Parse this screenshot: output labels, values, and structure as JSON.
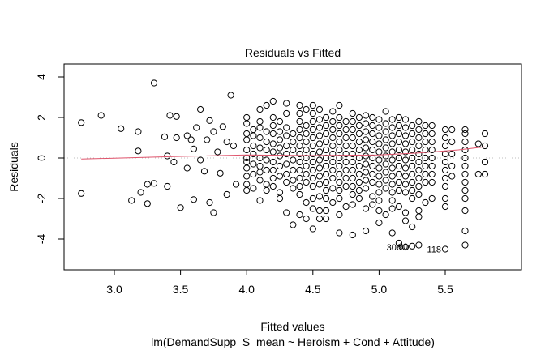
{
  "chart_data": {
    "type": "scatter",
    "title": "Residuals vs Fitted",
    "xlabel": "Fitted values",
    "subtitle": "lm(DemandSupp_S_mean ~ Heroism + Cond + Attitude)",
    "ylabel": "Residuals",
    "xlim": [
      2.65,
      5.9
    ],
    "ylim": [
      -5.5,
      4.7
    ],
    "x_ticks": [
      "3.0",
      "3.5",
      "4.0",
      "4.5",
      "5.0",
      "5.5"
    ],
    "y_ticks": [
      "4",
      "2",
      "0",
      "-2",
      "-4"
    ],
    "grid": false,
    "reference_line": 0,
    "smooth_color": "#DF536B",
    "reference_color": "#BEBEBE",
    "smooth_line": [
      [
        2.75,
        -0.05
      ],
      [
        3.5,
        0.08
      ],
      [
        4.0,
        0.15
      ],
      [
        4.5,
        0.12
      ],
      [
        5.0,
        0.15
      ],
      [
        5.3,
        0.25
      ],
      [
        5.6,
        0.4
      ],
      [
        5.8,
        0.55
      ]
    ],
    "labeled_points": [
      {
        "label": "306",
        "x": 5.2,
        "y": -4.4
      },
      {
        "label": "60",
        "x": 5.25,
        "y": -4.35
      },
      {
        "label": "118",
        "x": 5.5,
        "y": -4.5
      }
    ],
    "points": [
      [
        2.75,
        1.75
      ],
      [
        2.75,
        -1.75
      ],
      [
        2.9,
        2.1
      ],
      [
        3.05,
        1.45
      ],
      [
        3.18,
        1.3
      ],
      [
        3.18,
        0.35
      ],
      [
        3.13,
        -2.1
      ],
      [
        3.2,
        -1.7
      ],
      [
        3.25,
        -1.3
      ],
      [
        3.25,
        -2.25
      ],
      [
        3.3,
        3.7
      ],
      [
        3.3,
        -1.25
      ],
      [
        3.38,
        1.05
      ],
      [
        3.4,
        -1.4
      ],
      [
        3.4,
        0.1
      ],
      [
        3.42,
        2.1
      ],
      [
        3.47,
        2.05
      ],
      [
        3.45,
        -0.2
      ],
      [
        3.47,
        1.0
      ],
      [
        3.5,
        -2.45
      ],
      [
        3.55,
        -0.5
      ],
      [
        3.55,
        1.1
      ],
      [
        3.58,
        0.9
      ],
      [
        3.6,
        -2.05
      ],
      [
        3.6,
        0.45
      ],
      [
        3.62,
        1.5
      ],
      [
        3.65,
        2.4
      ],
      [
        3.68,
        -0.65
      ],
      [
        3.72,
        1.85
      ],
      [
        3.72,
        -2.2
      ],
      [
        3.75,
        1.3
      ],
      [
        3.75,
        -2.7
      ],
      [
        3.78,
        0.3
      ],
      [
        3.8,
        -0.75
      ],
      [
        3.82,
        1.55
      ],
      [
        3.85,
        -1.8
      ],
      [
        3.88,
        3.1
      ],
      [
        3.9,
        0.6
      ],
      [
        3.92,
        -1.3
      ],
      [
        3.7,
        0.9
      ],
      [
        3.65,
        -0.1
      ],
      [
        3.85,
        0.8
      ]
    ],
    "columns": [
      {
        "x": 4.0,
        "r": [
          2.0,
          1.7,
          1.2,
          0.9,
          0.4,
          0,
          -0.2,
          -0.5,
          -0.9,
          -1.3,
          -1.6
        ]
      },
      {
        "x": 4.05,
        "r": [
          1.4,
          1.1,
          0.6,
          0.2,
          -0.3,
          -0.8,
          -1.5
        ]
      },
      {
        "x": 4.1,
        "r": [
          2.4,
          1.8,
          1.5,
          1.0,
          0.5,
          0,
          -0.4,
          -0.7,
          -1.1,
          -2.1
        ]
      },
      {
        "x": 4.15,
        "r": [
          2.6,
          1.3,
          0.8,
          0.4,
          -0.1,
          -0.6,
          -1.3,
          -1.6
        ]
      },
      {
        "x": 4.2,
        "r": [
          2.8,
          2.0,
          1.6,
          1.2,
          0.7,
          0.3,
          -0.2,
          -0.6,
          -1.0,
          -1.4
        ]
      },
      {
        "x": 4.25,
        "r": [
          1.8,
          1.3,
          0.9,
          0.5,
          0.1,
          -0.4,
          -0.9,
          -1.7,
          -2.0
        ]
      },
      {
        "x": 4.3,
        "r": [
          2.7,
          2.2,
          1.5,
          1.1,
          0.6,
          0.2,
          -0.3,
          -0.8,
          -1.2,
          -2.7
        ]
      },
      {
        "x": 4.35,
        "r": [
          1.2,
          0.8,
          0.4,
          -0.1,
          -0.6,
          -1.1,
          -1.5,
          -3.3
        ]
      },
      {
        "x": 4.4,
        "r": [
          2.6,
          2.2,
          1.8,
          1.4,
          1.0,
          0.6,
          0.2,
          -0.2,
          -0.6,
          -1.0,
          -1.4,
          -1.8,
          -2.8
        ]
      },
      {
        "x": 4.45,
        "r": [
          2.4,
          1.6,
          1.2,
          0.8,
          0.4,
          0,
          -0.4,
          -0.8,
          -1.2,
          -2.2,
          -3.0
        ]
      },
      {
        "x": 4.5,
        "r": [
          2.6,
          2.2,
          1.8,
          1.4,
          1.0,
          0.6,
          0.2,
          -0.2,
          -0.6,
          -1.0,
          -1.4,
          -2.0,
          -2.5,
          -3.5
        ]
      },
      {
        "x": 4.55,
        "r": [
          2.4,
          1.9,
          1.5,
          1.1,
          0.7,
          0.3,
          -0.1,
          -0.5,
          -0.9,
          -1.3,
          -1.9,
          -2.6,
          -3.0
        ]
      },
      {
        "x": 4.6,
        "r": [
          2.0,
          1.6,
          1.2,
          0.8,
          0.4,
          0,
          -0.4,
          -0.8,
          -1.2,
          -1.6,
          -2.0,
          -2.6,
          -3.0
        ]
      },
      {
        "x": 4.65,
        "r": [
          2.3,
          1.8,
          1.4,
          1.0,
          0.6,
          0.2,
          -0.2,
          -0.6,
          -1.0,
          -1.5,
          -2.2
        ]
      },
      {
        "x": 4.7,
        "r": [
          2.6,
          2.0,
          1.6,
          1.2,
          0.8,
          0.4,
          0,
          -0.4,
          -0.8,
          -1.2,
          -1.6,
          -2.0,
          -2.8,
          -3.7
        ]
      },
      {
        "x": 4.75,
        "r": [
          1.8,
          1.4,
          1.0,
          0.6,
          0.2,
          -0.2,
          -0.6,
          -1.0,
          -1.4,
          -2.4
        ]
      },
      {
        "x": 4.8,
        "r": [
          2.2,
          1.8,
          1.4,
          1.0,
          0.6,
          0.2,
          -0.2,
          -0.6,
          -1.0,
          -1.4,
          -1.8,
          -2.3,
          -3.8
        ]
      },
      {
        "x": 4.85,
        "r": [
          2.0,
          1.6,
          1.2,
          0.8,
          0.4,
          0,
          -0.4,
          -0.8,
          -1.2,
          -1.6,
          -2.0
        ]
      },
      {
        "x": 4.9,
        "r": [
          2.1,
          1.7,
          1.3,
          0.9,
          0.5,
          0.1,
          -0.3,
          -0.7,
          -1.1,
          -1.5,
          -2.5,
          -3.6
        ]
      },
      {
        "x": 4.95,
        "r": [
          2.0,
          1.6,
          1.2,
          0.8,
          0.4,
          0,
          -0.4,
          -0.8,
          -1.2,
          -1.9,
          -2.3
        ]
      },
      {
        "x": 5.0,
        "r": [
          1.9,
          1.5,
          1.1,
          0.7,
          0.3,
          -0.1,
          -0.5,
          -0.9,
          -1.3,
          -1.7,
          -2.1,
          -2.6,
          -3.2
        ]
      },
      {
        "x": 5.05,
        "r": [
          2.3,
          1.7,
          1.3,
          0.9,
          0.5,
          0.1,
          -0.3,
          -0.7,
          -1.1,
          -1.5,
          -2.8
        ]
      },
      {
        "x": 5.1,
        "r": [
          1.9,
          1.5,
          1.1,
          0.7,
          0.3,
          -0.1,
          -0.5,
          -0.9,
          -1.3,
          -1.7,
          -2.1,
          -2.5,
          -3.7
        ]
      },
      {
        "x": 5.15,
        "r": [
          2.0,
          1.6,
          1.2,
          0.8,
          0.4,
          0,
          -0.4,
          -0.8,
          -1.2,
          -1.6,
          -2.4,
          -4.2
        ]
      },
      {
        "x": 5.2,
        "r": [
          1.9,
          1.5,
          1.1,
          0.7,
          0.3,
          -0.1,
          -0.5,
          -0.9,
          -1.3,
          -1.7,
          -2.7,
          -3.1,
          -4.4
        ]
      },
      {
        "x": 5.25,
        "r": [
          1.6,
          1.2,
          0.8,
          0.4,
          0,
          -0.4,
          -0.8,
          -1.2,
          -1.6,
          -2.0,
          -3.4,
          -4.35
        ]
      },
      {
        "x": 5.3,
        "r": [
          1.8,
          1.4,
          1.0,
          0.6,
          0.2,
          -0.2,
          -0.6,
          -1.0,
          -1.4,
          -1.8,
          -2.6,
          -2.9,
          -4.3
        ]
      },
      {
        "x": 5.35,
        "r": [
          1.6,
          1.2,
          0.8,
          0.4,
          0,
          -0.4,
          -0.8,
          -1.2,
          -2.2
        ]
      },
      {
        "x": 5.4,
        "r": [
          1.6,
          1.2,
          0.8,
          0.4,
          0,
          -0.4,
          -0.8,
          -1.2,
          -2.0
        ]
      },
      {
        "x": 5.5,
        "r": [
          1.4,
          1.0,
          0.6,
          0.2,
          -0.2,
          -0.6,
          -1.0,
          -1.4,
          -2.0,
          -2.4,
          -4.5
        ]
      },
      {
        "x": 5.55,
        "r": [
          1.4,
          0.8,
          0.2,
          -0.4,
          -0.9
        ]
      },
      {
        "x": 5.65,
        "r": [
          1.4,
          1.2,
          0.8,
          0.4,
          0,
          -0.4,
          -0.8,
          -1.2,
          -1.6,
          -2.0,
          -2.6,
          -3.6,
          -4.3
        ]
      },
      {
        "x": 5.75,
        "r": [
          0.7,
          -0.8
        ]
      },
      {
        "x": 5.8,
        "r": [
          1.2,
          0.6,
          -0.2,
          -0.8
        ]
      }
    ]
  }
}
